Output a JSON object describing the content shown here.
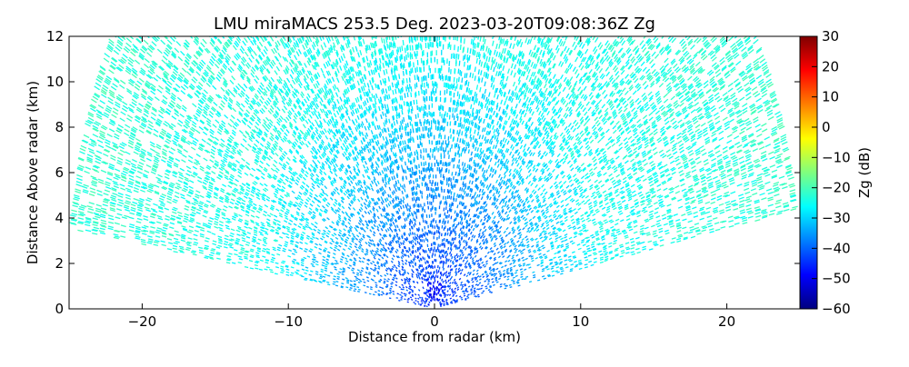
{
  "chart_data": {
    "type": "heatmap",
    "title": "LMU miraMACS 253.5 Deg. 2023-03-20T09:08:36Z  Zg",
    "xlabel": "Distance from radar (km)",
    "ylabel": "Distance Above radar  (km)",
    "xlim": [
      -25,
      25
    ],
    "ylim": [
      0,
      12
    ],
    "x_ticks": [
      -20,
      -10,
      0,
      10,
      20
    ],
    "x_tick_labels": [
      "−20",
      "−10",
      "0",
      "10",
      "20"
    ],
    "y_ticks": [
      0,
      2,
      4,
      6,
      8,
      10,
      12
    ],
    "y_tick_labels": [
      "0",
      "2",
      "4",
      "6",
      "8",
      "10",
      "12"
    ],
    "grid": false,
    "scan": {
      "radar_position_km": [
        0,
        0
      ],
      "max_range_km": 25,
      "left_edge_elevation_deg": 172,
      "right_edge_elevation_deg": 10
    },
    "colorbar": {
      "label": "Zg (dB)",
      "range": [
        -60,
        30
      ],
      "ticks": [
        30,
        20,
        10,
        0,
        -10,
        -20,
        -30,
        -40,
        -50,
        -60
      ],
      "tick_labels": [
        "30",
        "20",
        "10",
        "0",
        "−10",
        "−20",
        "−30",
        "−40",
        "−50",
        "−60"
      ],
      "colormap": "jet",
      "colormap_stops": [
        "#00007f",
        "#0000ff",
        "#007fff",
        "#00ffff",
        "#7fff7f",
        "#ffff00",
        "#ff7f00",
        "#ff0000",
        "#7f0000"
      ]
    },
    "reflectivity_profile": {
      "description_points_km": [
        0,
        1,
        2,
        4,
        6,
        8,
        12,
        25
      ],
      "zg_db": [
        -45,
        -44,
        -42,
        -38,
        -34,
        -30,
        -25,
        -22
      ]
    }
  }
}
